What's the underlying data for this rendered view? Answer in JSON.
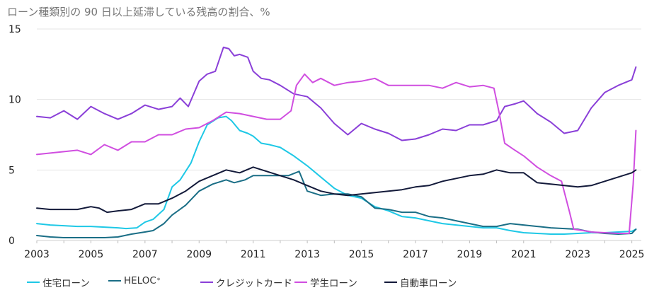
{
  "title": "ローン種類別の 90 日以上延滞している残高の割合、%",
  "chart_data": {
    "type": "line",
    "title": "ローン種類別の 90 日以上延滞している残高の割合、%",
    "xlabel": "",
    "ylabel": "",
    "xlim": [
      2003,
      2025.35
    ],
    "ylim": [
      0,
      15
    ],
    "yticks": [
      "0",
      "5",
      "10",
      "15"
    ],
    "xticks": [
      "2003",
      "2005",
      "2007",
      "2009",
      "2011",
      "2013",
      "2015",
      "2017",
      "2019",
      "2021",
      "2023",
      "2025"
    ],
    "grid": true,
    "legend": "bottom",
    "series": [
      {
        "name": "住宅ローン",
        "color": "#1ec8e6",
        "x": [
          2003.0,
          2003.5,
          2004.0,
          2004.5,
          2005.0,
          2005.5,
          2006.0,
          2006.3,
          2006.7,
          2007.0,
          2007.3,
          2007.7,
          2008.0,
          2008.3,
          2008.7,
          2009.0,
          2009.3,
          2009.7,
          2010.0,
          2010.2,
          2010.5,
          2010.8,
          2011.0,
          2011.3,
          2011.6,
          2012.0,
          2012.5,
          2013.0,
          2013.5,
          2014.0,
          2014.5,
          2015.0,
          2015.5,
          2016.0,
          2016.5,
          2017.0,
          2017.5,
          2018.0,
          2018.5,
          2019.0,
          2019.5,
          2020.0,
          2020.5,
          2021.0,
          2021.5,
          2022.0,
          2022.5,
          2023.0,
          2023.5,
          2024.0,
          2024.5,
          2025.0,
          2025.15
        ],
        "values": [
          1.2,
          1.1,
          1.05,
          1.0,
          1.0,
          0.95,
          0.9,
          0.85,
          0.9,
          1.3,
          1.5,
          2.2,
          3.8,
          4.3,
          5.5,
          7.0,
          8.2,
          8.7,
          8.8,
          8.5,
          7.8,
          7.6,
          7.4,
          6.9,
          6.8,
          6.6,
          6.0,
          5.3,
          4.5,
          3.7,
          3.2,
          3.0,
          2.4,
          2.1,
          1.7,
          1.6,
          1.4,
          1.2,
          1.1,
          1.0,
          0.9,
          0.9,
          0.7,
          0.55,
          0.5,
          0.45,
          0.45,
          0.5,
          0.55,
          0.55,
          0.6,
          0.65,
          0.8
        ]
      },
      {
        "name": "HELOC",
        "name_superscript": "*",
        "color": "#1a6e86",
        "x": [
          2003.0,
          2003.5,
          2004.0,
          2004.5,
          2005.0,
          2005.5,
          2006.0,
          2006.5,
          2007.0,
          2007.3,
          2007.7,
          2008.0,
          2008.5,
          2009.0,
          2009.5,
          2010.0,
          2010.3,
          2010.7,
          2011.0,
          2011.5,
          2012.0,
          2012.3,
          2012.7,
          2013.0,
          2013.5,
          2014.0,
          2014.5,
          2015.0,
          2015.5,
          2016.0,
          2016.5,
          2017.0,
          2017.5,
          2018.0,
          2018.5,
          2019.0,
          2019.5,
          2020.0,
          2020.5,
          2021.0,
          2021.5,
          2022.0,
          2022.5,
          2023.0,
          2023.5,
          2024.0,
          2024.5,
          2025.0,
          2025.15
        ],
        "values": [
          0.35,
          0.25,
          0.2,
          0.2,
          0.2,
          0.2,
          0.25,
          0.45,
          0.6,
          0.7,
          1.2,
          1.8,
          2.5,
          3.5,
          4.0,
          4.3,
          4.1,
          4.3,
          4.6,
          4.6,
          4.6,
          4.6,
          4.9,
          3.5,
          3.2,
          3.3,
          3.3,
          3.1,
          2.3,
          2.2,
          2.0,
          2.0,
          1.7,
          1.6,
          1.4,
          1.2,
          1.0,
          1.0,
          1.2,
          1.1,
          1.0,
          0.9,
          0.85,
          0.8,
          0.6,
          0.5,
          0.45,
          0.5,
          0.8
        ]
      },
      {
        "name": "クレジットカード",
        "color": "#8a3fd8",
        "x": [
          2003.0,
          2003.5,
          2004.0,
          2004.5,
          2005.0,
          2005.5,
          2006.0,
          2006.5,
          2007.0,
          2007.5,
          2008.0,
          2008.3,
          2008.6,
          2009.0,
          2009.3,
          2009.6,
          2009.9,
          2010.1,
          2010.3,
          2010.5,
          2010.8,
          2011.0,
          2011.3,
          2011.6,
          2012.0,
          2012.5,
          2013.0,
          2013.5,
          2014.0,
          2014.5,
          2015.0,
          2015.5,
          2016.0,
          2016.5,
          2017.0,
          2017.5,
          2018.0,
          2018.5,
          2019.0,
          2019.5,
          2020.0,
          2020.3,
          2020.7,
          2021.0,
          2021.5,
          2022.0,
          2022.5,
          2023.0,
          2023.5,
          2024.0,
          2024.5,
          2025.0,
          2025.15
        ],
        "values": [
          8.8,
          8.7,
          9.2,
          8.6,
          9.5,
          9.0,
          8.6,
          9.0,
          9.6,
          9.3,
          9.5,
          10.1,
          9.5,
          11.3,
          11.8,
          12.0,
          13.7,
          13.6,
          13.1,
          13.2,
          13.0,
          12.0,
          11.5,
          11.4,
          11.0,
          10.4,
          10.2,
          9.4,
          8.3,
          7.5,
          8.3,
          7.9,
          7.6,
          7.1,
          7.2,
          7.5,
          7.9,
          7.8,
          8.2,
          8.2,
          8.5,
          9.5,
          9.7,
          9.9,
          9.0,
          8.4,
          7.6,
          7.8,
          9.4,
          10.5,
          11.0,
          11.4,
          12.3
        ]
      },
      {
        "name": "学生ローン",
        "color": "#d04ee0",
        "x": [
          2003.0,
          2003.5,
          2004.0,
          2004.5,
          2005.0,
          2005.5,
          2006.0,
          2006.5,
          2007.0,
          2007.5,
          2008.0,
          2008.5,
          2009.0,
          2009.5,
          2010.0,
          2010.5,
          2011.0,
          2011.5,
          2012.0,
          2012.4,
          2012.6,
          2012.9,
          2013.2,
          2013.5,
          2014.0,
          2014.5,
          2015.0,
          2015.5,
          2016.0,
          2016.5,
          2017.0,
          2017.5,
          2018.0,
          2018.5,
          2019.0,
          2019.5,
          2019.9,
          2020.1,
          2020.3,
          2020.6,
          2021.0,
          2021.5,
          2022.0,
          2022.4,
          2022.7,
          2022.85,
          2023.2,
          2023.5,
          2024.0,
          2024.5,
          2024.9,
          2025.05,
          2025.15
        ],
        "values": [
          6.1,
          6.2,
          6.3,
          6.4,
          6.1,
          6.8,
          6.4,
          7.0,
          7.0,
          7.5,
          7.5,
          7.9,
          8.0,
          8.5,
          9.1,
          9.0,
          8.8,
          8.6,
          8.6,
          9.2,
          11.0,
          11.8,
          11.2,
          11.5,
          11.0,
          11.2,
          11.3,
          11.5,
          11.0,
          11.0,
          11.0,
          11.0,
          10.8,
          11.2,
          10.9,
          11.0,
          10.8,
          9.0,
          6.9,
          6.5,
          6.0,
          5.2,
          4.6,
          4.2,
          2.0,
          0.8,
          0.7,
          0.6,
          0.55,
          0.5,
          0.5,
          4.0,
          7.8
        ]
      },
      {
        "name": "自動車ローン",
        "color": "#131a3a",
        "x": [
          2003.0,
          2003.5,
          2004.0,
          2004.5,
          2005.0,
          2005.3,
          2005.6,
          2006.0,
          2006.5,
          2007.0,
          2007.5,
          2008.0,
          2008.5,
          2009.0,
          2009.5,
          2010.0,
          2010.5,
          2011.0,
          2011.5,
          2012.0,
          2012.5,
          2013.0,
          2013.5,
          2014.0,
          2014.5,
          2015.0,
          2015.5,
          2016.0,
          2016.5,
          2017.0,
          2017.5,
          2018.0,
          2018.5,
          2019.0,
          2019.5,
          2020.0,
          2020.5,
          2021.0,
          2021.5,
          2022.0,
          2022.5,
          2023.0,
          2023.5,
          2024.0,
          2024.5,
          2025.0,
          2025.15
        ],
        "values": [
          2.3,
          2.2,
          2.2,
          2.2,
          2.4,
          2.3,
          2.0,
          2.1,
          2.2,
          2.6,
          2.6,
          3.0,
          3.5,
          4.2,
          4.6,
          5.0,
          4.8,
          5.2,
          4.9,
          4.6,
          4.3,
          3.9,
          3.5,
          3.3,
          3.2,
          3.3,
          3.4,
          3.5,
          3.6,
          3.8,
          3.9,
          4.2,
          4.4,
          4.6,
          4.7,
          5.0,
          4.8,
          4.8,
          4.1,
          4.0,
          3.9,
          3.8,
          3.9,
          4.2,
          4.5,
          4.8,
          5.0
        ]
      }
    ]
  }
}
